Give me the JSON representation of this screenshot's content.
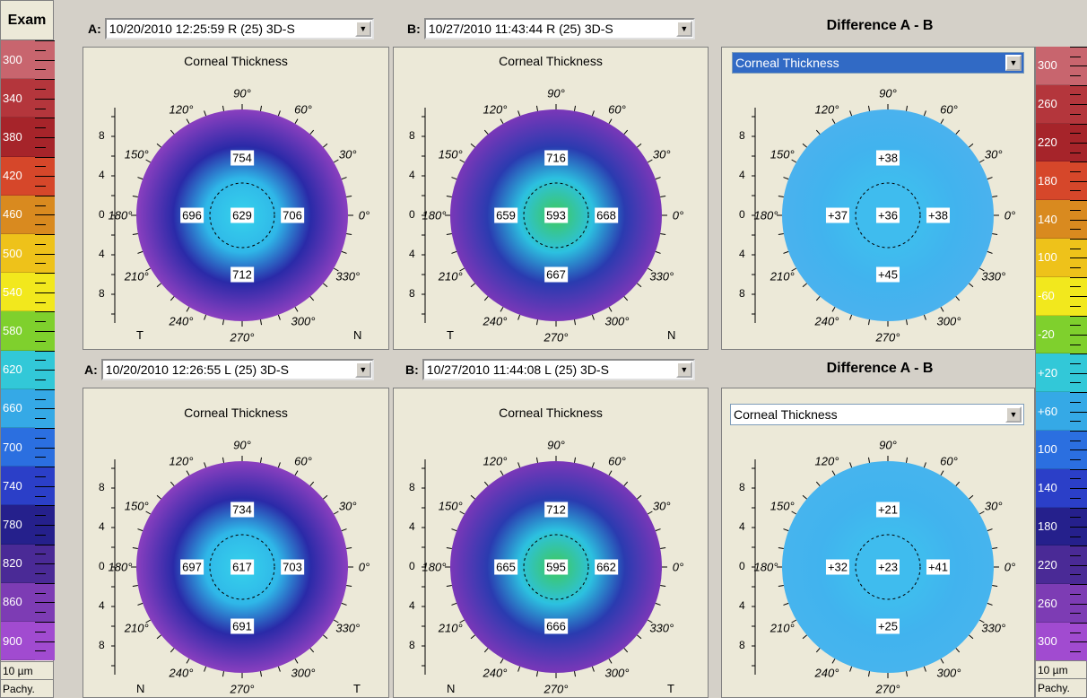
{
  "left_scale": {
    "title": "Exam",
    "unit": "10 µm",
    "footer": "Pachy.",
    "labels": [
      "300",
      "340",
      "380",
      "420",
      "460",
      "500",
      "540",
      "580",
      "620",
      "660",
      "700",
      "740",
      "780",
      "820",
      "860",
      "900"
    ],
    "colors": [
      "#c8656e",
      "#b4363c",
      "#a6242a",
      "#d6472a",
      "#d98a1f",
      "#eec21a",
      "#f2e81d",
      "#7fd02d",
      "#32c8d8",
      "#35a9e6",
      "#2b6fe0",
      "#2b3fc8",
      "#25208c",
      "#4a2a96",
      "#7d3cb4",
      "#a14bd0"
    ]
  },
  "right_scale": {
    "unit": "10 µm",
    "footer": "Pachy.",
    "labels": [
      "300",
      "260",
      "220",
      "180",
      "140",
      "100",
      "-60",
      "-20",
      "+20",
      "+60",
      "100",
      "140",
      "180",
      "220",
      "260",
      "300"
    ],
    "colors": [
      "#c8656e",
      "#b4363c",
      "#a6242a",
      "#d6472a",
      "#d98a1f",
      "#eec21a",
      "#f2e81d",
      "#7fd02d",
      "#32c8d8",
      "#35a9e6",
      "#2b6fe0",
      "#2b3fc8",
      "#25208c",
      "#4a2a96",
      "#7d3cb4",
      "#a14bd0"
    ]
  },
  "top": {
    "a_label": "A:",
    "a_exam": "10/20/2010  12:25:59  R  (25) 3D-S",
    "b_label": "B:",
    "b_exam": "10/27/2010  11:43:44  R  (25) 3D-S",
    "diff_title": "Difference A - B",
    "diff_select": "Corneal Thickness"
  },
  "bottom": {
    "a_label": "A:",
    "a_exam": "10/20/2010  12:26:55  L  (25) 3D-S",
    "b_label": "B:",
    "b_exam": "10/27/2010  11:44:08  L  (25) 3D-S",
    "diff_title": "Difference A - B",
    "diff_select": "Corneal Thickness"
  },
  "maps": [
    {
      "id": "tl",
      "title": "Corneal Thickness",
      "left_side": "T",
      "right_side": "N",
      "values": {
        "top": "754",
        "left": "696",
        "center": "629",
        "right": "706",
        "bottom": "712"
      },
      "outer": "#8a3fbf",
      "mid": "#2a2aa8",
      "inner": "#2fb7e8",
      "center_color": "#36d2ec"
    },
    {
      "id": "tm",
      "title": "Corneal Thickness",
      "left_side": "T",
      "right_side": "N",
      "values": {
        "top": "716",
        "left": "659",
        "center": "593",
        "right": "668",
        "bottom": "667"
      },
      "outer": "#7a37b8",
      "mid": "#2a3bb0",
      "inner": "#2cc1e0",
      "center_color": "#3fc95a"
    },
    {
      "id": "tr",
      "title": "",
      "left_side": "",
      "right_side": "",
      "values": {
        "top": "+38",
        "left": "+37",
        "center": "+36",
        "right": "+38",
        "bottom": "+45"
      },
      "outer": "#4ab2ee",
      "mid": "#41b3ee",
      "inner": "#3fbcee",
      "center_color": "#3fbcee"
    },
    {
      "id": "bl",
      "title": "Corneal Thickness",
      "left_side": "N",
      "right_side": "T",
      "values": {
        "top": "734",
        "left": "697",
        "center": "617",
        "right": "703",
        "bottom": "691"
      },
      "outer": "#8a3fbf",
      "mid": "#2a2aa8",
      "inner": "#2fb7e8",
      "center_color": "#36d2ec"
    },
    {
      "id": "bm",
      "title": "Corneal Thickness",
      "left_side": "N",
      "right_side": "T",
      "values": {
        "top": "712",
        "left": "665",
        "center": "595",
        "right": "662",
        "bottom": "666"
      },
      "outer": "#7a37b8",
      "mid": "#2a3bb0",
      "inner": "#2cc1e0",
      "center_color": "#3fc95a"
    },
    {
      "id": "br",
      "title": "",
      "left_side": "",
      "right_side": "",
      "values": {
        "top": "+21",
        "left": "+32",
        "center": "+23",
        "right": "+41",
        "bottom": "+25"
      },
      "outer": "#46b4ee",
      "mid": "#41b3ee",
      "inner": "#3fbcee",
      "center_color": "#3fbcee"
    }
  ],
  "angle_labels": {
    "a90": "90°",
    "a60": "60°",
    "a30": "30°",
    "a0": "0°",
    "a330": "330°",
    "a300": "300°",
    "a270": "270°",
    "a240": "240°",
    "a210": "210°",
    "a180": "180°",
    "a150": "150°",
    "a120": "120°"
  },
  "y_ticks": [
    "8",
    "4",
    "0",
    "4",
    "8"
  ]
}
